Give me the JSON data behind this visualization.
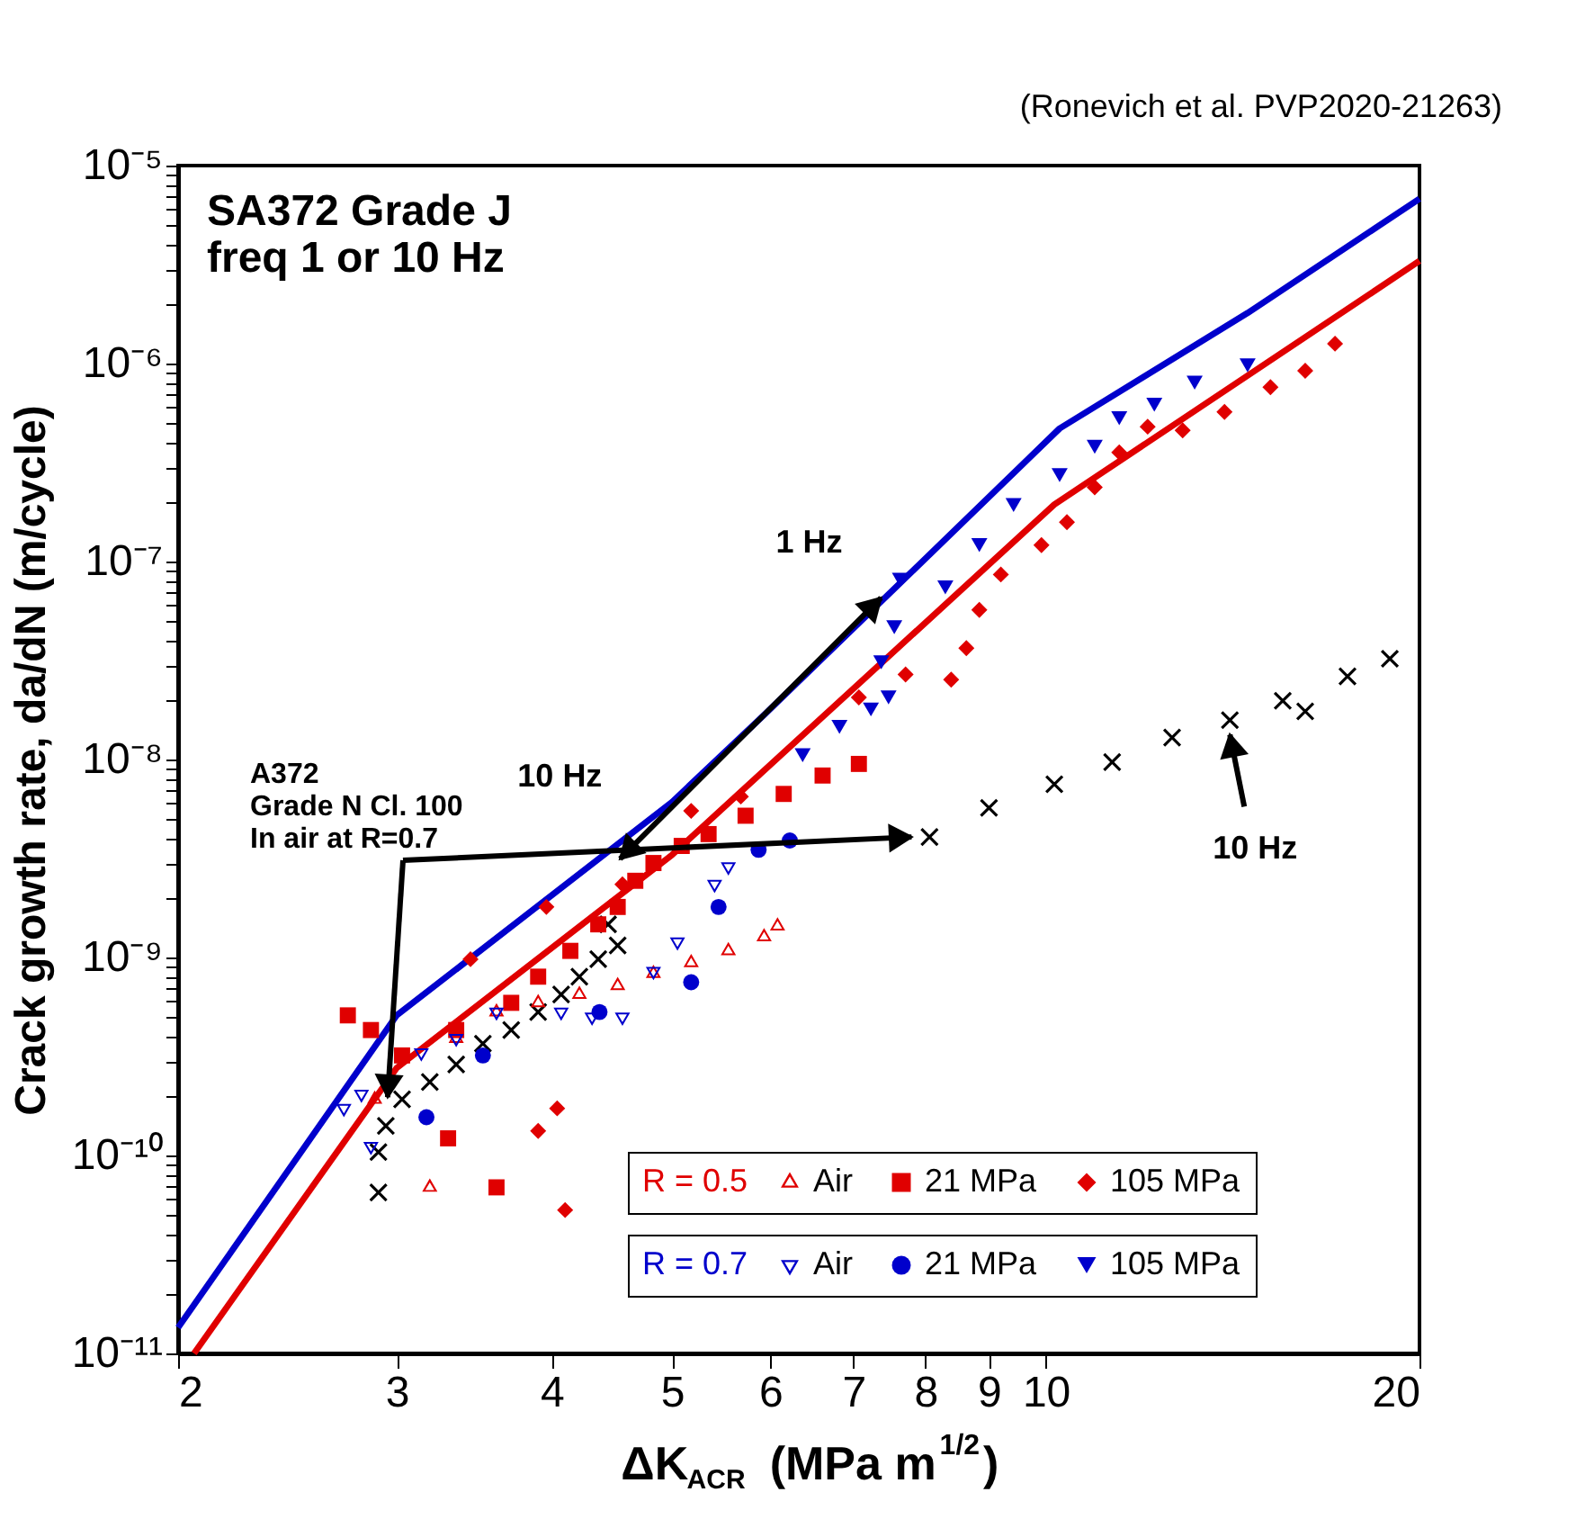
{
  "chart_data": {
    "type": "scatter",
    "title": "SA372 Grade J\nfreq 1 or 10 Hz",
    "xlabel": "ΔK$_{ACR}$ (MPa m$^{1/2}$)",
    "ylabel": "Crack growth rate, da/dN (m/cycle)",
    "log": "xy",
    "legend": "bottom right",
    "xlim": [
      2,
      20
    ],
    "xticks": [
      2,
      3,
      4,
      5,
      6,
      7,
      8,
      9,
      10,
      20
    ],
    "ylim": [
      1e-11,
      1e-05
    ],
    "yticks": [
      {
        "value": 1e-05,
        "label": "10⁻⁵"
      },
      {
        "value": 1e-06,
        "label": "10⁻⁶"
      },
      {
        "value": 1e-07,
        "label": "10⁻⁷"
      },
      {
        "value": 1e-08,
        "label": "10⁻⁸"
      },
      {
        "value": 1e-09,
        "label": "10⁻⁹"
      },
      {
        "value": 1e-10,
        "label": "10⁻¹⁰"
      },
      {
        "value": 1e-11,
        "label": "10⁻¹¹"
      },
      {
        "value": 2e-11,
        "label": null
      },
      {
        "value": 3e-11,
        "label": null
      },
      {
        "value": 4e-11,
        "label": null
      },
      {
        "value": 5e-11,
        "label": null
      },
      {
        "value": 6e-11,
        "label": null
      },
      {
        "value": 7e-11,
        "label": null
      },
      {
        "value": 8e-11,
        "label": null
      },
      {
        "value": 9e-11,
        "label": null
      },
      {
        "value": 2e-10,
        "label": null
      },
      {
        "value": 3e-10,
        "label": null
      },
      {
        "value": 4e-10,
        "label": null
      },
      {
        "value": 5e-10,
        "label": null
      },
      {
        "value": 6e-10,
        "label": null
      },
      {
        "value": 7e-10,
        "label": null
      },
      {
        "value": 8e-10,
        "label": null
      },
      {
        "value": 9e-10,
        "label": null
      },
      {
        "value": 2e-09,
        "label": null
      },
      {
        "value": 3e-09,
        "label": null
      },
      {
        "value": 4e-09,
        "label": null
      },
      {
        "value": 5e-09,
        "label": null
      },
      {
        "value": 6e-09,
        "label": null
      },
      {
        "value": 7e-09,
        "label": null
      },
      {
        "value": 8e-09,
        "label": null
      },
      {
        "value": 9e-09,
        "label": null
      },
      {
        "value": 2e-08,
        "label": null
      },
      {
        "value": 3e-08,
        "label": null
      },
      {
        "value": 4e-08,
        "label": null
      },
      {
        "value": 5e-08,
        "label": null
      },
      {
        "value": 6e-08,
        "label": null
      },
      {
        "value": 7e-08,
        "label": null
      },
      {
        "value": 8e-08,
        "label": null
      },
      {
        "value": 9e-08,
        "label": null
      },
      {
        "value": 2e-07,
        "label": null
      },
      {
        "value": 3e-07,
        "label": null
      },
      {
        "value": 4e-07,
        "label": null
      },
      {
        "value": 5e-07,
        "label": null
      },
      {
        "value": 6e-07,
        "label": null
      },
      {
        "value": 7e-07,
        "label": null
      },
      {
        "value": 8e-07,
        "label": null
      },
      {
        "value": 9e-07,
        "label": null
      },
      {
        "value": 2e-06,
        "label": null
      },
      {
        "value": 3e-06,
        "label": null
      },
      {
        "value": 4e-06,
        "label": null
      },
      {
        "value": 5e-06,
        "label": null
      },
      {
        "value": 6e-06,
        "label": null
      },
      {
        "value": 7e-06,
        "label": null
      },
      {
        "value": 8e-06,
        "label": null
      },
      {
        "value": 9e-06,
        "label": null
      }
    ],
    "annotations": [
      "(Ronevich et al. PVP2020-21263)",
      "1 Hz",
      "10 Hz",
      {
        "text": "A372\nGrade N Cl. 100\nIn air at R=0.7",
        "x": 2.95,
        "y": 1.97e-10
      },
      {
        "text": "10 Hz",
        "x": 14.07,
        "y": 1.58e-08
      },
      "R = 0.5",
      "R = 0.7"
    ],
    "series": [
      {
        "type": "line",
        "color": "#0000cc",
        "x": [
          2,
          3,
          5,
          5.93,
          10.26,
          14.54,
          20
        ],
        "values": [
          1.35e-11,
          5.1e-10,
          6.1e-09,
          1.68e-08,
          4.7e-07,
          1.8e-06,
          6.8e-06
        ]
      },
      {
        "type": "line",
        "color": "#e00000",
        "x": [
          2.06,
          3,
          5,
          10.16,
          20
        ],
        "values": [
          1e-11,
          2.77e-10,
          3.3e-09,
          1.94e-07,
          3.3e-06
        ]
      },
      {
        "name": "Air",
        "color": "#e00000",
        "marker": "triangle-open",
        "x": [
          2.88,
          3.19,
          3.35,
          3.61,
          3.9,
          4.21,
          4.52,
          4.83,
          5.18,
          5.55,
          5.93,
          6.08
        ],
        "values": [
          1.92e-10,
          6.9e-11,
          3.9e-10,
          5.3e-10,
          5.9e-10,
          6.5e-10,
          7.2e-10,
          8.3e-10,
          9.4e-10,
          1.08e-09,
          1.27e-09,
          1.44e-09
        ]
      },
      {
        "name": "21 MPa",
        "color": "#e00000",
        "marker": "square",
        "x": [
          2.74,
          2.86,
          3.3,
          3.61,
          3.03,
          3.35,
          3.71,
          3.9,
          4.14,
          4.36,
          4.52,
          4.67,
          4.83,
          5.09,
          5.35,
          5.73,
          6.15,
          6.61,
          7.07
        ],
        "values": [
          5.1e-10,
          4.3e-10,
          1.22e-10,
          6.9e-11,
          3.2e-10,
          4.3e-10,
          5.9e-10,
          8e-10,
          1.08e-09,
          1.47e-09,
          1.8e-09,
          2.44e-09,
          3e-09,
          3.66e-09,
          4.2e-09,
          5.2e-09,
          6.7e-09,
          8.3e-09,
          9.5e-09
        ]
      },
      {
        "name": "105 MPa",
        "color": "#e00000",
        "marker": "diamond",
        "x": [
          3.96,
          3.44,
          4.04,
          3.9,
          4.1,
          5.18,
          5.68,
          4.56,
          7.07,
          7.71,
          8.39,
          8.63,
          8.84,
          9.2,
          9.92,
          10.4,
          10.95,
          11.46,
          12.08,
          12.89,
          13.93,
          15.17,
          16.18,
          17.1
        ],
        "values": [
          1.8e-09,
          9.8e-10,
          1.73e-10,
          1.33e-10,
          5.3e-11,
          5.5e-09,
          6.5e-09,
          2.34e-09,
          2.06e-08,
          2.69e-08,
          2.53e-08,
          3.65e-08,
          5.7e-08,
          8.6e-08,
          1.21e-07,
          1.58e-07,
          2.37e-07,
          3.56e-07,
          4.8e-07,
          4.6e-07,
          5.7e-07,
          7.6e-07,
          9.2e-07,
          1.26e-06
        ]
      },
      {
        "name": "Air",
        "color": "#0000cc",
        "marker": "triangle-down-open",
        "x": [
          2.72,
          2.81,
          2.86,
          3.14,
          3.35,
          3.61,
          4.07,
          4.31,
          4.56,
          4.83,
          5.05,
          5.41,
          5.55
        ],
        "values": [
          1.73e-10,
          2.04e-10,
          1.11e-10,
          3.3e-10,
          3.9e-10,
          5.3e-10,
          5.3e-10,
          5e-10,
          5e-10,
          8.5e-10,
          1.2e-09,
          2.34e-09,
          2.87e-09
        ]
      },
      {
        "name": "21 MPa",
        "color": "#0000cc",
        "marker": "circle",
        "x": [
          3.17,
          3.52,
          4.37,
          5.18,
          5.45,
          5.87,
          6.22
        ],
        "values": [
          1.56e-10,
          3.2e-10,
          5.3e-10,
          7.5e-10,
          1.8e-09,
          3.5e-09,
          3.9e-09
        ]
      },
      {
        "name": "105 MPa",
        "color": "#0000cc",
        "marker": "triangle-down",
        "x": [
          6.37,
          6.82,
          7.23,
          7.37,
          7.47,
          7.55,
          7.63,
          8.3,
          8.84,
          9.42,
          10.26,
          10.95,
          11.46,
          12.23,
          13.18,
          14.54
        ],
        "values": [
          1.05e-08,
          1.46e-08,
          1.79e-08,
          3.1e-08,
          2.06e-08,
          4.66e-08,
          8.1e-08,
          7.4e-08,
          1.21e-07,
          1.93e-07,
          2.73e-07,
          3.8e-07,
          5.3e-07,
          6.2e-07,
          8e-07,
          9.8e-07
        ]
      },
      {
        "color": "#000000",
        "marker": "cross",
        "x": [
          2.9,
          2.9,
          2.94,
          3.03,
          3.19,
          3.35,
          3.52,
          3.71,
          3.9,
          4.07,
          4.21,
          4.36,
          4.52,
          4.44
        ],
        "values": [
          6.5e-11,
          1.04e-10,
          1.41e-10,
          1.92e-10,
          2.35e-10,
          2.88e-10,
          3.67e-10,
          4.3e-10,
          5.3e-10,
          6.5e-10,
          8e-10,
          9.8e-10,
          1.15e-09,
          1.47e-09
        ]
      },
      {
        "color": "#000000",
        "marker": "cross",
        "x": [
          8.06,
          9.0,
          10.16,
          11.31,
          12.64,
          14.07,
          15.52,
          16.18,
          17.5,
          18.93
        ],
        "values": [
          4.06e-09,
          5.7e-09,
          7.5e-09,
          9.7e-09,
          1.29e-08,
          1.58e-08,
          1.98e-08,
          1.75e-08,
          2.63e-08,
          3.23e-08
        ]
      }
    ]
  }
}
